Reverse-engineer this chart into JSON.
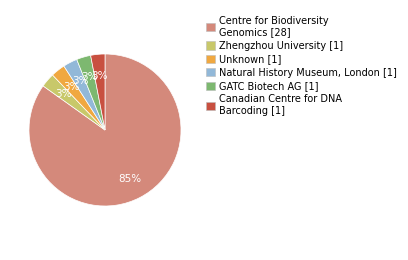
{
  "labels": [
    "Centre for Biodiversity\nGenomics [28]",
    "Zhengzhou University [1]",
    "Unknown [1]",
    "Natural History Museum, London [1]",
    "GATC Biotech AG [1]",
    "Canadian Centre for DNA\nBarcoding [1]"
  ],
  "values": [
    28,
    1,
    1,
    1,
    1,
    1
  ],
  "colors": [
    "#d4897b",
    "#c8c86a",
    "#f0a840",
    "#92b8d8",
    "#7db870",
    "#c85040"
  ],
  "background_color": "#ffffff",
  "text_color": "#ffffff",
  "legend_fontsize": 7.0,
  "autopct_fontsize": 7.5
}
